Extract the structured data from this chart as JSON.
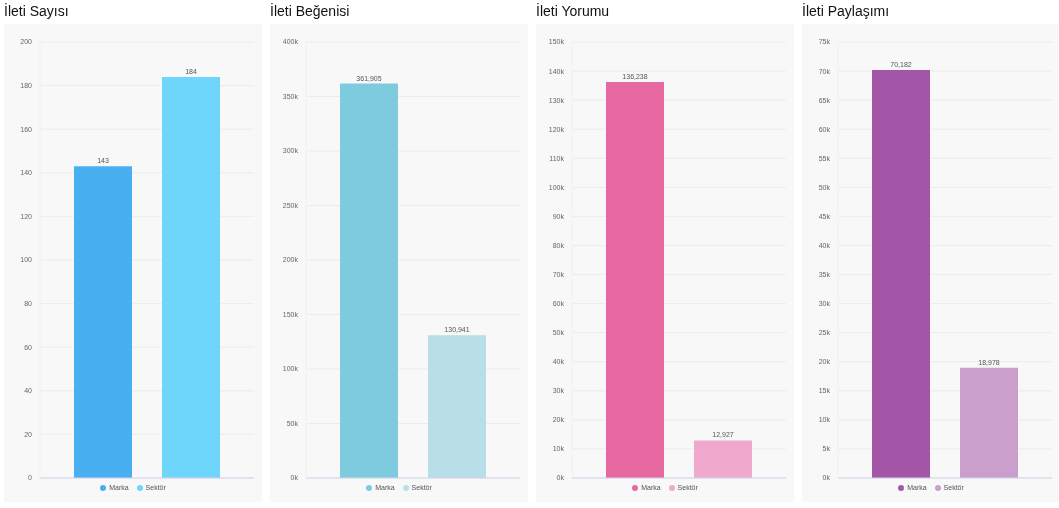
{
  "chart_data": [
    {
      "type": "bar",
      "title": "İleti Sayısı",
      "categories": [
        null
      ],
      "series": [
        {
          "name": "Marka",
          "color": "#48aff0",
          "values": [
            143
          ],
          "value_labels": [
            "143"
          ]
        },
        {
          "name": "Sektör",
          "color": "#6fd6fb",
          "values": [
            184
          ],
          "value_labels": [
            "184"
          ]
        }
      ],
      "ylim": [
        0,
        200
      ],
      "yticks": [
        0,
        20,
        40,
        60,
        80,
        100,
        120,
        140,
        160,
        180,
        200
      ],
      "grid": "y",
      "legend": "bottom",
      "tick_labels": "y"
    },
    {
      "type": "bar",
      "title": "İleti Beğenisi",
      "categories": [
        null
      ],
      "series": [
        {
          "name": "Marka",
          "color": "#7ecadf",
          "values": [
            361905
          ],
          "value_labels": [
            "361,905"
          ]
        },
        {
          "name": "Sektör",
          "color": "#b8dfe8",
          "values": [
            130941
          ],
          "value_labels": [
            "130,941"
          ]
        }
      ],
      "ylim": [
        0,
        400000
      ],
      "yticks": [
        {
          "value": 0,
          "label": "0k"
        },
        {
          "value": 50000,
          "label": "50k"
        },
        {
          "value": 100000,
          "label": "100k"
        },
        {
          "value": 150000,
          "label": "150k"
        },
        {
          "value": 200000,
          "label": "200k"
        },
        {
          "value": 250000,
          "label": "250k"
        },
        {
          "value": 300000,
          "label": "300k"
        },
        {
          "value": 350000,
          "label": "350k"
        },
        {
          "value": 400000,
          "label": "400k"
        }
      ],
      "grid": "y",
      "legend": "bottom",
      "tick_labels": "y"
    },
    {
      "type": "bar",
      "title": "İleti Yorumu",
      "categories": [
        null
      ],
      "series": [
        {
          "name": "Marka",
          "color": "#e768a1",
          "values": [
            136238
          ],
          "value_labels": [
            "136,238"
          ]
        },
        {
          "name": "Sektör",
          "color": "#f0a9cc",
          "values": [
            12927
          ],
          "value_labels": [
            "12,927"
          ]
        }
      ],
      "ylim": [
        0,
        150000
      ],
      "yticks": [
        {
          "value": 0,
          "label": "0k"
        },
        {
          "value": 10000,
          "label": "10k"
        },
        {
          "value": 20000,
          "label": "20k"
        },
        {
          "value": 30000,
          "label": "30k"
        },
        {
          "value": 40000,
          "label": "40k"
        },
        {
          "value": 50000,
          "label": "50k"
        },
        {
          "value": 60000,
          "label": "60k"
        },
        {
          "value": 70000,
          "label": "70k"
        },
        {
          "value": 80000,
          "label": "80k"
        },
        {
          "value": 90000,
          "label": "90k"
        },
        {
          "value": 100000,
          "label": "100k"
        },
        {
          "value": 110000,
          "label": "110k"
        },
        {
          "value": 120000,
          "label": "120k"
        },
        {
          "value": 130000,
          "label": "130k"
        },
        {
          "value": 140000,
          "label": "140k"
        },
        {
          "value": 150000,
          "label": "150k"
        }
      ],
      "grid": "y",
      "legend": "bottom",
      "tick_labels": "y"
    },
    {
      "type": "bar",
      "title": "İleti Paylaşımı",
      "categories": [
        null
      ],
      "series": [
        {
          "name": "Marka",
          "color": "#a356a8",
          "values": [
            70182
          ],
          "value_labels": [
            "70,182"
          ]
        },
        {
          "name": "Sektör",
          "color": "#cb9fcc",
          "values": [
            18978
          ],
          "value_labels": [
            "18,978"
          ]
        }
      ],
      "ylim": [
        0,
        75000
      ],
      "yticks": [
        {
          "value": 0,
          "label": "0k"
        },
        {
          "value": 5000,
          "label": "5k"
        },
        {
          "value": 10000,
          "label": "10k"
        },
        {
          "value": 15000,
          "label": "15k"
        },
        {
          "value": 20000,
          "label": "20k"
        },
        {
          "value": 25000,
          "label": "25k"
        },
        {
          "value": 30000,
          "label": "30k"
        },
        {
          "value": 35000,
          "label": "35k"
        },
        {
          "value": 40000,
          "label": "40k"
        },
        {
          "value": 45000,
          "label": "45k"
        },
        {
          "value": 50000,
          "label": "50k"
        },
        {
          "value": 55000,
          "label": "55k"
        },
        {
          "value": 60000,
          "label": "60k"
        },
        {
          "value": 65000,
          "label": "65k"
        },
        {
          "value": 70000,
          "label": "70k"
        },
        {
          "value": 75000,
          "label": "75k"
        }
      ],
      "grid": "y",
      "legend": "bottom",
      "tick_labels": "y"
    }
  ]
}
